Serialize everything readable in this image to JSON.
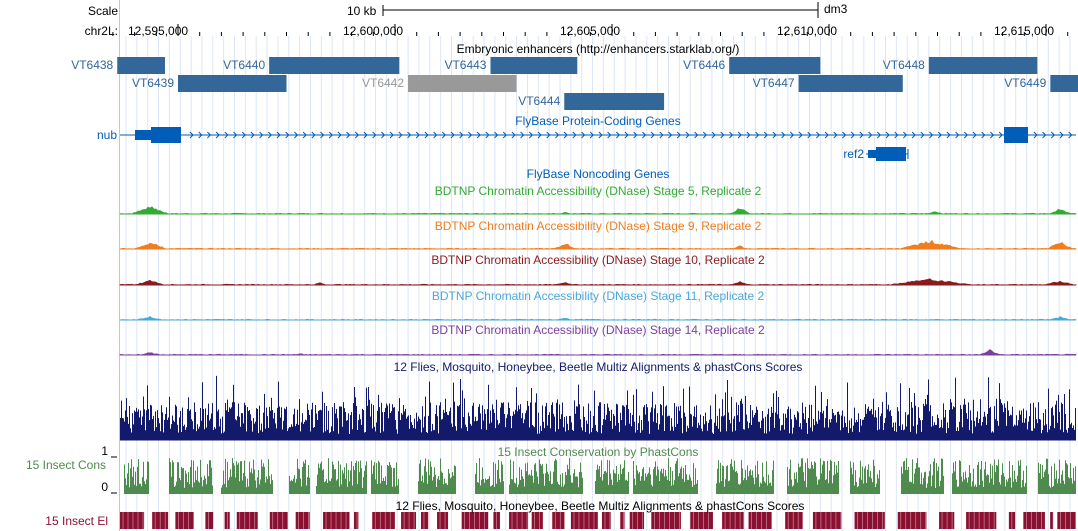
{
  "colors": {
    "enhancer": "#336699",
    "enhancer_gray": "#999999",
    "flybase": "#005DB8",
    "stage5": "#33aa33",
    "stage9": "#f07d1e",
    "stage10": "#8b1a1a",
    "stage11": "#4aa8d8",
    "stage14": "#7b3fa0",
    "multiz": "#141a6b",
    "phastcons": "#4f8a4f",
    "elements": "#8b1030"
  },
  "ruler": {
    "scale_label": "Scale",
    "scale_bar_label": "10 kb",
    "assembly": "dm3",
    "chrom_label": "chr2L:",
    "ticks": [
      "12,595,000",
      "12,600,000",
      "12,605,000",
      "12,610,000",
      "12,615,000"
    ]
  },
  "tracks": {
    "enhancers": {
      "title": "Embryonic enhancers (http://enhancers.starklab.org/)",
      "items": [
        {
          "name": "VT6438",
          "row": 0,
          "start_kb": 12593.6,
          "end_kb": 12594.7
        },
        {
          "name": "VT6439",
          "row": 1,
          "start_kb": 12595.0,
          "end_kb": 12597.5
        },
        {
          "name": "VT6440",
          "row": 0,
          "start_kb": 12597.1,
          "end_kb": 12600.1
        },
        {
          "name": "VT6442",
          "row": 1,
          "start_kb": 12600.3,
          "end_kb": 12602.8,
          "gray": true
        },
        {
          "name": "VT6443",
          "row": 0,
          "start_kb": 12602.2,
          "end_kb": 12604.2
        },
        {
          "name": "VT6444",
          "row": 2,
          "start_kb": 12603.9,
          "end_kb": 12606.2
        },
        {
          "name": "VT6446",
          "row": 0,
          "start_kb": 12607.7,
          "end_kb": 12609.8
        },
        {
          "name": "VT6447",
          "row": 1,
          "start_kb": 12609.3,
          "end_kb": 12611.7
        },
        {
          "name": "VT6448",
          "row": 0,
          "start_kb": 12612.3,
          "end_kb": 12614.8
        },
        {
          "name": "VT6449",
          "row": 1,
          "start_kb": 12615.1,
          "end_kb": 12616.4
        }
      ]
    },
    "flybase_coding": {
      "title": "FlyBase Protein-Coding Genes",
      "genes": [
        {
          "name": "nub",
          "start_kb": 12593.4,
          "end_kb": 12616.4,
          "row": 0
        },
        {
          "name": "ref2",
          "start_kb": 12611.7,
          "end_kb": 12612.6,
          "row": 1
        }
      ]
    },
    "flybase_noncoding": {
      "title": "FlyBase Noncoding Genes"
    },
    "dnase": [
      {
        "title": "BDTNP Chromatin Accessibility (DNase) Stage 5, Replicate 2",
        "color_key": "stage5"
      },
      {
        "title": "BDTNP Chromatin Accessibility (DNase) Stage 9, Replicate 2",
        "color_key": "stage9"
      },
      {
        "title": "BDTNP Chromatin Accessibility (DNase) Stage 10, Replicate 2",
        "color_key": "stage10"
      },
      {
        "title": "BDTNP Chromatin Accessibility (DNase) Stage 11, Replicate 2",
        "color_key": "stage11"
      },
      {
        "title": "BDTNP Chromatin Accessibility (DNase) Stage 14, Replicate 2",
        "color_key": "stage14"
      }
    ],
    "multiz": {
      "title": "12 Flies, Mosquito, Honeybee, Beetle Multiz Alignments & phastCons Scores"
    },
    "phastcons": {
      "title": "15 Insect Conservation by PhastCons",
      "side_label": "15 Insect Cons",
      "axis_max": "1",
      "axis_min": "0"
    },
    "elements": {
      "title": "12 Flies, Mosquito, Honeybee, Beetle Multiz Alignments & phastCons Scores",
      "side_label": "15 Insect El"
    }
  }
}
